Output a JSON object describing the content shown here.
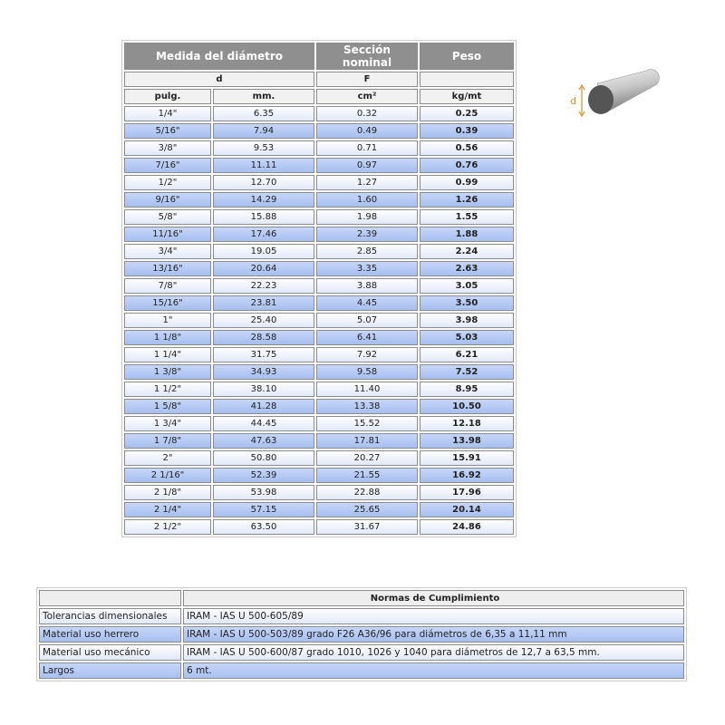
{
  "table": {
    "header": [
      "Medida del diámetro",
      "Sección nominal",
      "Peso"
    ],
    "symbols": [
      "d",
      "F"
    ],
    "units": [
      "pulg.",
      "mm.",
      "cm²",
      "kg/mt"
    ],
    "rows": [
      [
        "1/4\"",
        "6.35",
        "0.32",
        "0.25"
      ],
      [
        "5/16\"",
        "7.94",
        "0.49",
        "0.39"
      ],
      [
        "3/8\"",
        "9.53",
        "0.71",
        "0.56"
      ],
      [
        "7/16\"",
        "11.11",
        "0.97",
        "0.76"
      ],
      [
        "1/2\"",
        "12.70",
        "1.27",
        "0.99"
      ],
      [
        "9/16\"",
        "14.29",
        "1.60",
        "1.26"
      ],
      [
        "5/8\"",
        "15.88",
        "1.98",
        "1.55"
      ],
      [
        "11/16\"",
        "17.46",
        "2.39",
        "1.88"
      ],
      [
        "3/4\"",
        "19.05",
        "2.85",
        "2.24"
      ],
      [
        "13/16\"",
        "20.64",
        "3.35",
        "2.63"
      ],
      [
        "7/8\"",
        "22.23",
        "3.88",
        "3.05"
      ],
      [
        "15/16\"",
        "23.81",
        "4.45",
        "3.50"
      ],
      [
        "1\"",
        "25.40",
        "5.07",
        "3.98"
      ],
      [
        "1 1/8\"",
        "28.58",
        "6.41",
        "5.03"
      ],
      [
        "1 1/4\"",
        "31.75",
        "7.92",
        "6.21"
      ],
      [
        "1 3/8\"",
        "34.93",
        "9.58",
        "7.52"
      ],
      [
        "1 1/2\"",
        "38.10",
        "11.40",
        "8.95"
      ],
      [
        "1 5/8\"",
        "41.28",
        "13.38",
        "10.50"
      ],
      [
        "1 3/4\"",
        "44.45",
        "15.52",
        "12.18"
      ],
      [
        "1 7/8\"",
        "47.63",
        "17.81",
        "13.98"
      ],
      [
        "2\"",
        "50.80",
        "20.27",
        "15.91"
      ],
      [
        "2 1/16\"",
        "52.39",
        "21.55",
        "16.92"
      ],
      [
        "2 1/8\"",
        "53.98",
        "22.88",
        "17.96"
      ],
      [
        "2 1/4\"",
        "57.15",
        "25.65",
        "20.14"
      ],
      [
        "2 1/2\"",
        "63.50",
        "31.67",
        "24.86"
      ]
    ]
  },
  "figure": {
    "label": "d"
  },
  "norms": {
    "header": "Normas de Cumplimiento",
    "rows": [
      [
        "Tolerancias dimensionales",
        "IRAM - IAS U 500-605/89"
      ],
      [
        "Material uso herrero",
        "IRAM - IAS U 500-503/89 grado F26 A36/96 para diámetros de 6,35 a 11,11 mm"
      ],
      [
        "Material uso mecánico",
        "IRAM - IAS U 500-600/87 grado 1010, 1026 y 1040 para diámetros de 12,7 a 63,5 mm."
      ],
      [
        "Largos",
        "6 mt."
      ]
    ]
  }
}
